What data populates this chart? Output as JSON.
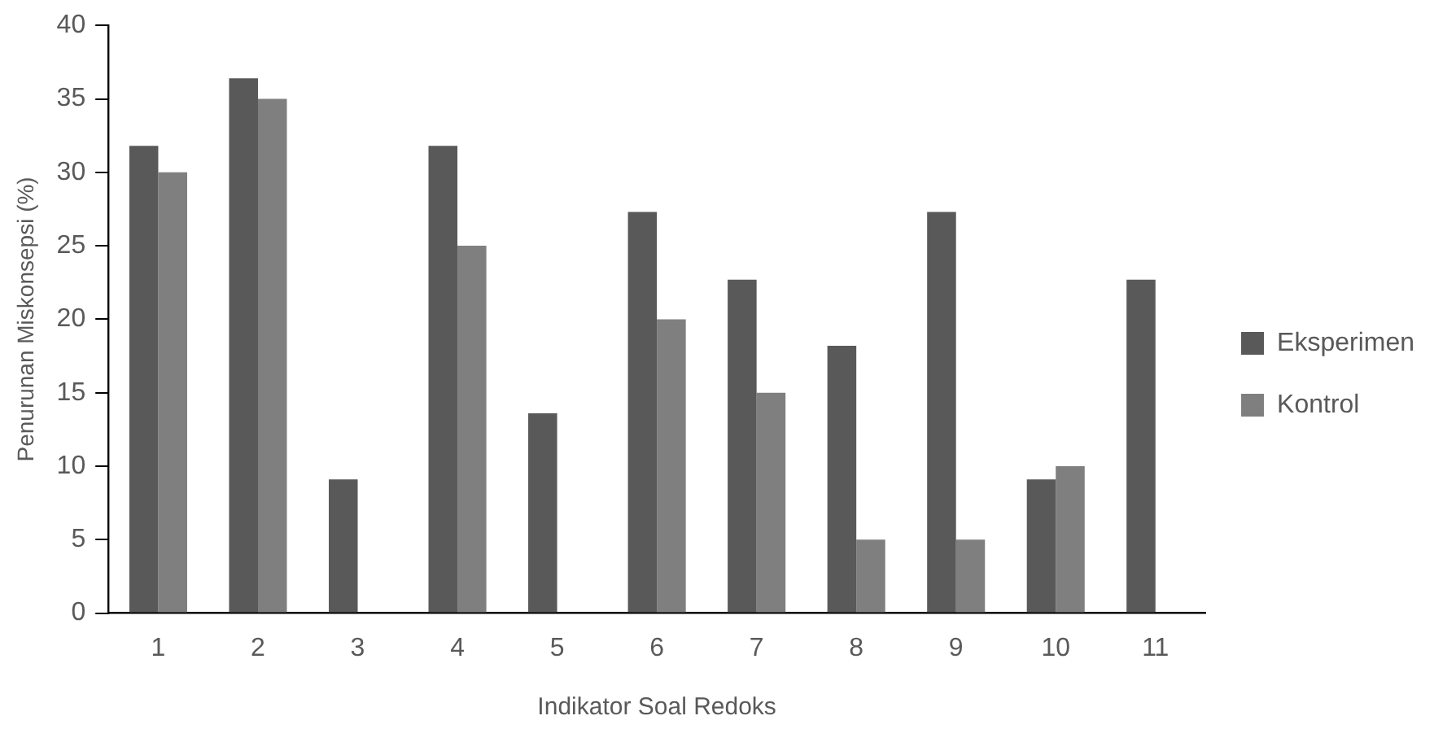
{
  "chart_data": {
    "type": "bar",
    "xlabel": "Indikator Soal Redoks",
    "ylabel": "Penurunan Miskonsepsi (%)",
    "categories": [
      "1",
      "2",
      "3",
      "4",
      "5",
      "6",
      "7",
      "8",
      "9",
      "10",
      "11"
    ],
    "series": [
      {
        "name": "Eksperimen",
        "color": "#595959",
        "values": [
          31.8,
          36.4,
          9.1,
          31.8,
          13.6,
          27.3,
          22.7,
          18.2,
          27.3,
          9.1,
          22.7
        ]
      },
      {
        "name": "Kontrol",
        "color": "#7f7f7f",
        "values": [
          30,
          35,
          0,
          25,
          0,
          20,
          15,
          5,
          5,
          10,
          0
        ]
      }
    ],
    "ylim": [
      0,
      40
    ],
    "yticks": [
      0,
      5,
      10,
      15,
      20,
      25,
      30,
      35,
      40
    ],
    "grid": false,
    "legend": "right"
  }
}
